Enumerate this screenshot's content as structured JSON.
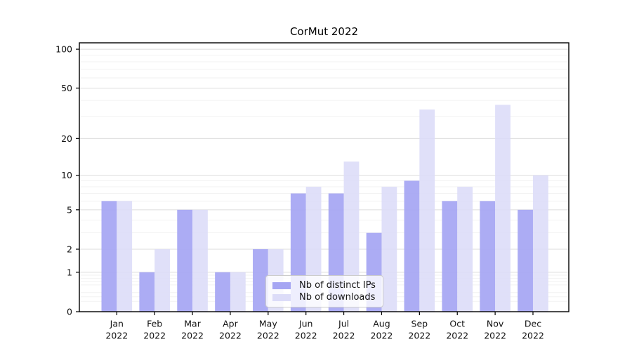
{
  "chart_data": {
    "type": "bar",
    "title": "CorMut 2022",
    "categories": [
      "Jan",
      "Feb",
      "Mar",
      "Apr",
      "May",
      "Jun",
      "Jul",
      "Aug",
      "Sep",
      "Oct",
      "Nov",
      "Dec"
    ],
    "category_year": "2022",
    "series": [
      {
        "name": "Nb of distinct IPs",
        "color": "#a5a5f3",
        "values": [
          6,
          1,
          5,
          1,
          2,
          7,
          7,
          3,
          9,
          6,
          6,
          5
        ]
      },
      {
        "name": "Nb of downloads",
        "color": "#dcdcf8",
        "values": [
          6,
          2,
          5,
          1,
          2,
          8,
          13,
          8,
          34,
          8,
          37,
          10
        ]
      }
    ],
    "yscale": "log1p",
    "ylim": [
      0,
      112
    ],
    "y_major_ticks": [
      0,
      1,
      2,
      5,
      10,
      20,
      50,
      100
    ],
    "y_minor_gridlines": [
      0.2,
      0.3,
      0.4,
      0.6,
      0.7,
      0.8,
      0.9,
      3,
      4,
      6,
      7,
      8,
      9,
      30,
      40,
      60,
      70,
      80,
      90
    ],
    "grid": true,
    "legend_position": "bottom-center",
    "colors": {
      "axis": "#000000",
      "grid_major": "#dcdcdc",
      "grid_minor": "#f2f2f2",
      "tick_text": "#111111"
    }
  }
}
